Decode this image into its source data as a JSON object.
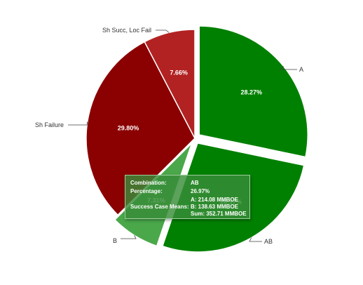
{
  "chart_data": {
    "type": "pie",
    "slices": [
      {
        "label": "A",
        "value": 28.27,
        "label_text": "28.27%",
        "color": "#008000",
        "exploded": true
      },
      {
        "label": "AB",
        "value": 26.97,
        "label_text": "26.97%",
        "color": "#008000",
        "exploded": true
      },
      {
        "label": "B",
        "value": 7.31,
        "label_text": "7.31%",
        "color": "#4aa84a",
        "exploded": true
      },
      {
        "label": "Sh Failure",
        "value": 29.8,
        "label_text": "29.80%",
        "color": "#8b0000",
        "exploded": false
      },
      {
        "label": "Sh Succ, Loc Fail",
        "value": 7.66,
        "label_text": "7.66%",
        "color": "#b22222",
        "exploded": false
      }
    ]
  },
  "tooltip": {
    "rows": [
      {
        "label": "Combination:",
        "value": "AB"
      },
      {
        "label": "Percentage:",
        "value": "26.97%"
      },
      {
        "label": "Success Case Means:",
        "values": [
          "A: 214.08 MMBOE",
          "B: 138.63 MMBOE",
          "Sum: 352.71 MMBOE"
        ]
      }
    ]
  }
}
